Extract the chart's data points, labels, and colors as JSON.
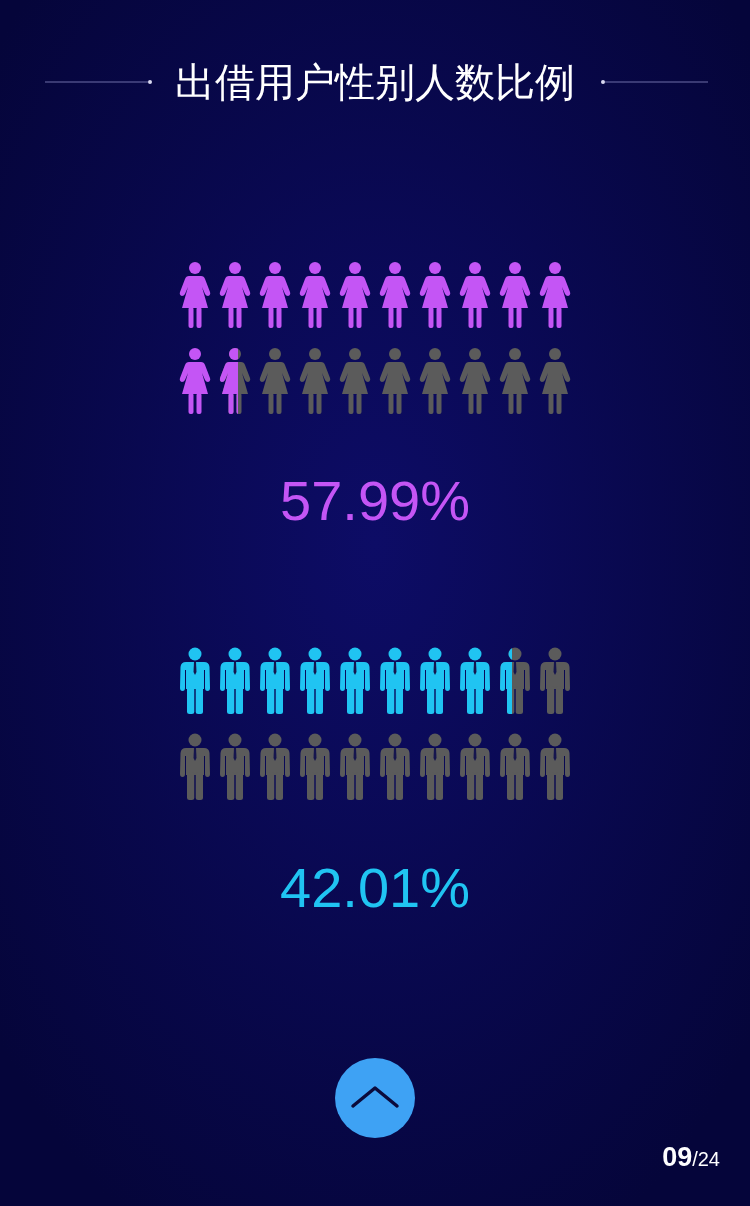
{
  "chart_data": {
    "type": "other",
    "title": "出借用户性别人数比例",
    "categories": [
      null,
      null
    ],
    "values": [
      57.99,
      42.01
    ],
    "colors": [
      "#c455f5",
      "#20c4f2"
    ],
    "value_labels": [
      "57.99%",
      "42.01%"
    ],
    "annotations": [
      "**09**/24"
    ]
  }
}
